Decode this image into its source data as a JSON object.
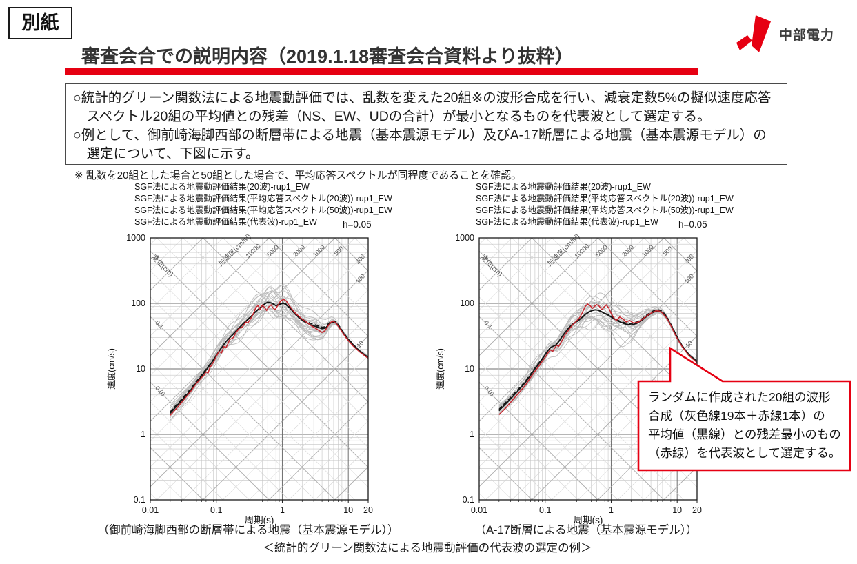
{
  "page": {
    "tag": "別紙",
    "title": "審査会合での説明内容（2019.1.18審査会合資料より抜粋）",
    "accent_color": "#e60012"
  },
  "logo": {
    "company": "中部電力",
    "mark_color": "#e60012"
  },
  "summary_box": {
    "bullets": [
      "○統計的グリーン関数法による地震動評価では、乱数を変えた20組※の波形合成を行い、減衰定数5%の擬似速度応答スペクトル20組の平均値との残差（NS、EW、UDの合計）が最小となるものを代表波として選定する。",
      "○例として、御前崎海脚西部の断層帯による地震（基本震源モデル）及びA-17断層による地震（基本震源モデル）の選定について、下図に示す。"
    ]
  },
  "note": "※ 乱数を20組とした場合と50組とした場合で、平均応答スペクトルが同程度であることを確認。",
  "legend": {
    "damping": "h=0.05",
    "items": [
      {
        "label": "SGF法による地震動評価結果(20波)-rup1_EW",
        "style": "gray-thin"
      },
      {
        "label": "SGF法による地震動評価結果(平均応答スペクトル(20波))-rup1_EW",
        "style": "black-solid"
      },
      {
        "label": "SGF法による地震動評価結果(平均応答スペクトル(50波))-rup1_EW",
        "style": "black-dashed"
      },
      {
        "label": "SGF法による地震動評価結果(代表波)-rup1_EW",
        "style": "red-solid"
      }
    ]
  },
  "captions": {
    "left": "（御前崎海脚西部の断層帯による地震（基本震源モデル））",
    "right": "（A-17断層による地震（基本震源モデル））",
    "bottom": "＜統計的グリーン関数法による地震動評価の代表波の選定の例＞"
  },
  "callout": {
    "border_color": "#e60012",
    "lines": [
      "ランダムに作成された20組の波形",
      "合成（灰色線19本＋赤線1本）の",
      "平均値（黒線）との残差最小のもの",
      "（赤線）を代表波として選定する。"
    ]
  },
  "chart_data": [
    {
      "type": "line",
      "title": "御前崎海脚西部の断層帯による地震（基本震源モデル）",
      "xlabel": "周期(s)",
      "ylabel": "速度(cm/s)",
      "xlim": [
        0.01,
        20
      ],
      "ylim": [
        0.1,
        1000
      ],
      "xscale": "log",
      "yscale": "log",
      "x_ticks": [
        "0.01",
        "0.1",
        "1",
        "10",
        "20"
      ],
      "y_ticks": [
        "1000",
        "100",
        "10",
        "1",
        "0.1"
      ],
      "damping": "h=0.05",
      "tripartite": {
        "disp_axis_label": "変位(cm)",
        "acc_axis_label": "加速度(cm/s²)",
        "disp_labels": [
          1,
          0.1,
          0.01
        ],
        "acc_labels": [
          10000,
          5000,
          2000,
          1000,
          500,
          200,
          100,
          10
        ]
      },
      "ensemble": {
        "name": "SGF法による地震動評価結果(20波)-rup1_EW",
        "count": 19,
        "seed": 13,
        "color": "#bcbcbc",
        "trange": [
          0.02,
          20
        ],
        "spread": [
          [
            0.02,
            0.075
          ],
          [
            0.05,
            0.075
          ],
          [
            0.1,
            0.09
          ],
          [
            0.2,
            0.12
          ],
          [
            0.3,
            0.16
          ],
          [
            0.5,
            0.19
          ],
          [
            0.8,
            0.21
          ],
          [
            1.2,
            0.22
          ],
          [
            2.0,
            0.19
          ],
          [
            3.0,
            0.16
          ],
          [
            4.0,
            0.11
          ],
          [
            5.0,
            0.055
          ],
          [
            6.0,
            0.035
          ],
          [
            7.0,
            0.02
          ],
          [
            10,
            0.014
          ],
          [
            20,
            0.012
          ]
        ]
      },
      "mean20": {
        "name": "SGF法による地震動評価結果(平均応答スペクトル(20波))-rup1_EW",
        "color": "#151515",
        "width": 1.8,
        "points": [
          [
            0.02,
            2.1
          ],
          [
            0.025,
            2.7
          ],
          [
            0.03,
            3.3
          ],
          [
            0.04,
            4.6
          ],
          [
            0.05,
            6.2
          ],
          [
            0.06,
            7.8
          ],
          [
            0.07,
            9.6
          ],
          [
            0.08,
            11.5
          ],
          [
            0.09,
            13.5
          ],
          [
            0.1,
            16
          ],
          [
            0.12,
            21
          ],
          [
            0.14,
            26
          ],
          [
            0.17,
            32
          ],
          [
            0.2,
            38
          ],
          [
            0.25,
            48
          ],
          [
            0.3,
            57
          ],
          [
            0.35,
            66
          ],
          [
            0.4,
            76
          ],
          [
            0.45,
            84
          ],
          [
            0.5,
            92
          ],
          [
            0.55,
            99
          ],
          [
            0.6,
            104
          ],
          [
            0.65,
            103
          ],
          [
            0.7,
            100
          ],
          [
            0.8,
            92
          ],
          [
            0.9,
            96
          ],
          [
            1.0,
            100
          ],
          [
            1.1,
            98
          ],
          [
            1.3,
            85
          ],
          [
            1.5,
            72
          ],
          [
            1.8,
            60
          ],
          [
            2.2,
            52
          ],
          [
            2.7,
            47
          ],
          [
            3.3,
            44
          ],
          [
            4.0,
            41
          ],
          [
            4.5,
            42
          ],
          [
            5.0,
            47
          ],
          [
            5.5,
            51
          ],
          [
            6.0,
            52
          ],
          [
            6.5,
            50
          ],
          [
            7.0,
            46
          ],
          [
            8.0,
            38
          ],
          [
            9.0,
            32
          ],
          [
            10,
            28
          ],
          [
            12,
            23
          ],
          [
            15,
            18.5
          ],
          [
            20,
            15
          ]
        ]
      },
      "mean50": {
        "name": "SGF法による地震動評価結果(平均応答スペクトル(50波))-rup1_EW",
        "color": "#151515",
        "width": 1.7,
        "dash": [
          6,
          3.5
        ],
        "offset_dec": 0.013
      },
      "rep": {
        "name": "SGF法による地震動評価結果(代表波)-rup1_EW",
        "color": "#c9242c",
        "width": 1.5,
        "points": [
          [
            0.02,
            1.95
          ],
          [
            0.025,
            2.5
          ],
          [
            0.03,
            3.1
          ],
          [
            0.04,
            4.4
          ],
          [
            0.05,
            6.0
          ],
          [
            0.06,
            7.4
          ],
          [
            0.065,
            8.0
          ],
          [
            0.07,
            9.0
          ],
          [
            0.075,
            8.6
          ],
          [
            0.08,
            10.5
          ],
          [
            0.09,
            12.5
          ],
          [
            0.1,
            15.5
          ],
          [
            0.11,
            18.5
          ],
          [
            0.12,
            17.5
          ],
          [
            0.13,
            22
          ],
          [
            0.14,
            21
          ],
          [
            0.16,
            28
          ],
          [
            0.18,
            30
          ],
          [
            0.2,
            36
          ],
          [
            0.22,
            41
          ],
          [
            0.25,
            44
          ],
          [
            0.28,
            52
          ],
          [
            0.3,
            50
          ],
          [
            0.33,
            58
          ],
          [
            0.36,
            68
          ],
          [
            0.4,
            88
          ],
          [
            0.43,
            92
          ],
          [
            0.46,
            80
          ],
          [
            0.5,
            95
          ],
          [
            0.54,
            86
          ],
          [
            0.58,
            78
          ],
          [
            0.62,
            88
          ],
          [
            0.68,
            95
          ],
          [
            0.72,
            85
          ],
          [
            0.78,
            80
          ],
          [
            0.85,
            92
          ],
          [
            0.95,
            110
          ],
          [
            1.05,
            115
          ],
          [
            1.15,
            108
          ],
          [
            1.25,
            95
          ],
          [
            1.4,
            82
          ],
          [
            1.6,
            70
          ],
          [
            1.9,
            60
          ],
          [
            2.3,
            52
          ],
          [
            2.8,
            45
          ],
          [
            3.4,
            40
          ],
          [
            4.0,
            36
          ],
          [
            4.4,
            38
          ],
          [
            5.0,
            46
          ],
          [
            5.5,
            52
          ],
          [
            6.0,
            53
          ],
          [
            6.5,
            50
          ],
          [
            7.0,
            45
          ],
          [
            8.0,
            37
          ],
          [
            9.0,
            31
          ],
          [
            10,
            27
          ],
          [
            12,
            22
          ],
          [
            15,
            18
          ],
          [
            20,
            14.5
          ]
        ]
      }
    },
    {
      "type": "line",
      "title": "A-17断層による地震（基本震源モデル）",
      "xlabel": "周期(s)",
      "ylabel": "速度(cm/s)",
      "xlim": [
        0.01,
        20
      ],
      "ylim": [
        0.1,
        1000
      ],
      "xscale": "log",
      "yscale": "log",
      "x_ticks": [
        "0.01",
        "0.1",
        "1",
        "10",
        "20"
      ],
      "y_ticks": [
        "1000",
        "100",
        "10",
        "1",
        "0.1"
      ],
      "damping": "h=0.05",
      "tripartite": {
        "disp_axis_label": "変位(cm)",
        "acc_axis_label": "加速度(cm/s²)",
        "disp_labels": [
          1,
          0.1,
          0.01
        ],
        "acc_labels": [
          10000,
          5000,
          2000,
          1000,
          500,
          200,
          100,
          10
        ]
      },
      "ensemble": {
        "name": "SGF法による地震動評価結果(20波)-rup1_EW",
        "count": 19,
        "seed": 29,
        "color": "#bcbcbc",
        "trange": [
          0.02,
          20
        ],
        "spread": [
          [
            0.02,
            0.08
          ],
          [
            0.05,
            0.08
          ],
          [
            0.1,
            0.1
          ],
          [
            0.2,
            0.14
          ],
          [
            0.3,
            0.16
          ],
          [
            0.5,
            0.18
          ],
          [
            0.8,
            0.2
          ],
          [
            1.2,
            0.2
          ],
          [
            2.0,
            0.17
          ],
          [
            3.0,
            0.12
          ],
          [
            4.0,
            0.07
          ],
          [
            5.0,
            0.04
          ],
          [
            6.0,
            0.03
          ],
          [
            8.0,
            0.016
          ],
          [
            20,
            0.012
          ]
        ]
      },
      "mean20": {
        "name": "SGF法による地震動評価結果(平均応答スペクトル(20波))-rup1_EW",
        "color": "#151515",
        "width": 1.8,
        "points": [
          [
            0.02,
            2.3
          ],
          [
            0.025,
            2.9
          ],
          [
            0.03,
            3.5
          ],
          [
            0.04,
            4.8
          ],
          [
            0.05,
            6.2
          ],
          [
            0.06,
            8.0
          ],
          [
            0.07,
            10
          ],
          [
            0.08,
            12
          ],
          [
            0.09,
            14
          ],
          [
            0.1,
            16.5
          ],
          [
            0.11,
            19
          ],
          [
            0.12,
            21
          ],
          [
            0.13,
            22
          ],
          [
            0.145,
            23
          ],
          [
            0.16,
            26
          ],
          [
            0.18,
            31
          ],
          [
            0.2,
            36
          ],
          [
            0.23,
            43
          ],
          [
            0.26,
            48
          ],
          [
            0.3,
            53
          ],
          [
            0.34,
            58
          ],
          [
            0.38,
            64
          ],
          [
            0.42,
            70
          ],
          [
            0.47,
            75
          ],
          [
            0.52,
            78
          ],
          [
            0.58,
            80
          ],
          [
            0.65,
            78
          ],
          [
            0.72,
            74
          ],
          [
            0.8,
            70
          ],
          [
            0.9,
            66
          ],
          [
            1.0,
            62
          ],
          [
            1.15,
            57
          ],
          [
            1.3,
            53
          ],
          [
            1.5,
            50
          ],
          [
            1.7,
            48
          ],
          [
            2.0,
            47
          ],
          [
            2.4,
            49
          ],
          [
            2.9,
            55
          ],
          [
            3.5,
            64
          ],
          [
            4.2,
            72
          ],
          [
            4.8,
            76
          ],
          [
            5.4,
            76
          ],
          [
            6.0,
            72
          ],
          [
            7.0,
            60
          ],
          [
            8.0,
            47
          ],
          [
            9.0,
            37
          ],
          [
            10,
            30
          ],
          [
            12,
            22
          ],
          [
            15,
            16.5
          ],
          [
            20,
            13
          ]
        ]
      },
      "mean50": {
        "name": "SGF法による地震動評価結果(平均応答スペクトル(50波))-rup1_EW",
        "color": "#151515",
        "width": 1.7,
        "dash": [
          6,
          3.5
        ],
        "offset_dec": 0.013
      },
      "rep": {
        "name": "SGF法による地震動評価結果(代表波)-rup1_EW",
        "color": "#c9242c",
        "width": 1.5,
        "points": [
          [
            0.02,
            2.0
          ],
          [
            0.025,
            2.5
          ],
          [
            0.03,
            3.1
          ],
          [
            0.04,
            4.3
          ],
          [
            0.05,
            5.6
          ],
          [
            0.06,
            7.4
          ],
          [
            0.07,
            9.2
          ],
          [
            0.08,
            11
          ],
          [
            0.09,
            13
          ],
          [
            0.1,
            15
          ],
          [
            0.11,
            17.5
          ],
          [
            0.12,
            19.5
          ],
          [
            0.13,
            18.5
          ],
          [
            0.14,
            21
          ],
          [
            0.15,
            23
          ],
          [
            0.16,
            22
          ],
          [
            0.18,
            27
          ],
          [
            0.2,
            33
          ],
          [
            0.23,
            40
          ],
          [
            0.26,
            47
          ],
          [
            0.3,
            54
          ],
          [
            0.33,
            60
          ],
          [
            0.36,
            70
          ],
          [
            0.4,
            88
          ],
          [
            0.44,
            98
          ],
          [
            0.48,
            92
          ],
          [
            0.52,
            84
          ],
          [
            0.56,
            90
          ],
          [
            0.6,
            96
          ],
          [
            0.66,
            90
          ],
          [
            0.72,
            80
          ],
          [
            0.78,
            88
          ],
          [
            0.84,
            95
          ],
          [
            0.92,
            85
          ],
          [
            1.0,
            70
          ],
          [
            1.1,
            60
          ],
          [
            1.2,
            55
          ],
          [
            1.35,
            62
          ],
          [
            1.5,
            58
          ],
          [
            1.7,
            52
          ],
          [
            1.9,
            55
          ],
          [
            2.2,
            50
          ],
          [
            2.6,
            52
          ],
          [
            3.0,
            58
          ],
          [
            3.6,
            66
          ],
          [
            4.2,
            73
          ],
          [
            4.8,
            77
          ],
          [
            5.4,
            76
          ],
          [
            6.0,
            71
          ],
          [
            7.0,
            59
          ],
          [
            8.0,
            46
          ],
          [
            9.0,
            36
          ],
          [
            10,
            29
          ],
          [
            12,
            21.5
          ],
          [
            15,
            16
          ],
          [
            20,
            12.5
          ]
        ]
      }
    }
  ]
}
